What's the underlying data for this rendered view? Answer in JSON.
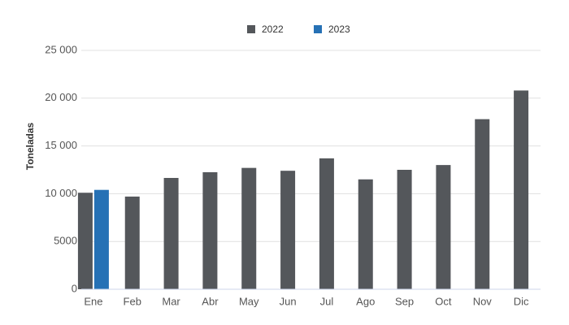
{
  "chart_data": {
    "type": "bar",
    "y_label": "Toneladas",
    "categories": [
      "Ene",
      "Feb",
      "Mar",
      "Abr",
      "May",
      "Jun",
      "Jul",
      "Ago",
      "Sep",
      "Oct",
      "Nov",
      "Dic"
    ],
    "series": [
      {
        "name": "2022",
        "color": "#54575b",
        "values": [
          10100,
          9700,
          11650,
          12250,
          12700,
          12400,
          13700,
          11500,
          12500,
          13000,
          17800,
          20800
        ]
      },
      {
        "name": "2023",
        "color": "#2671b5",
        "values": [
          10400,
          null,
          null,
          null,
          null,
          null,
          null,
          null,
          null,
          null,
          null,
          null
        ]
      }
    ],
    "ylim": [
      0,
      25000
    ],
    "yticks": [
      0,
      5000,
      {
        "value": 10000,
        "label": "10 000"
      },
      {
        "value": 15000,
        "label": "15 000"
      },
      {
        "value": 20000,
        "label": "20 000"
      },
      {
        "value": 25000,
        "label": "25 000"
      }
    ],
    "grid": true,
    "legend": "top"
  }
}
